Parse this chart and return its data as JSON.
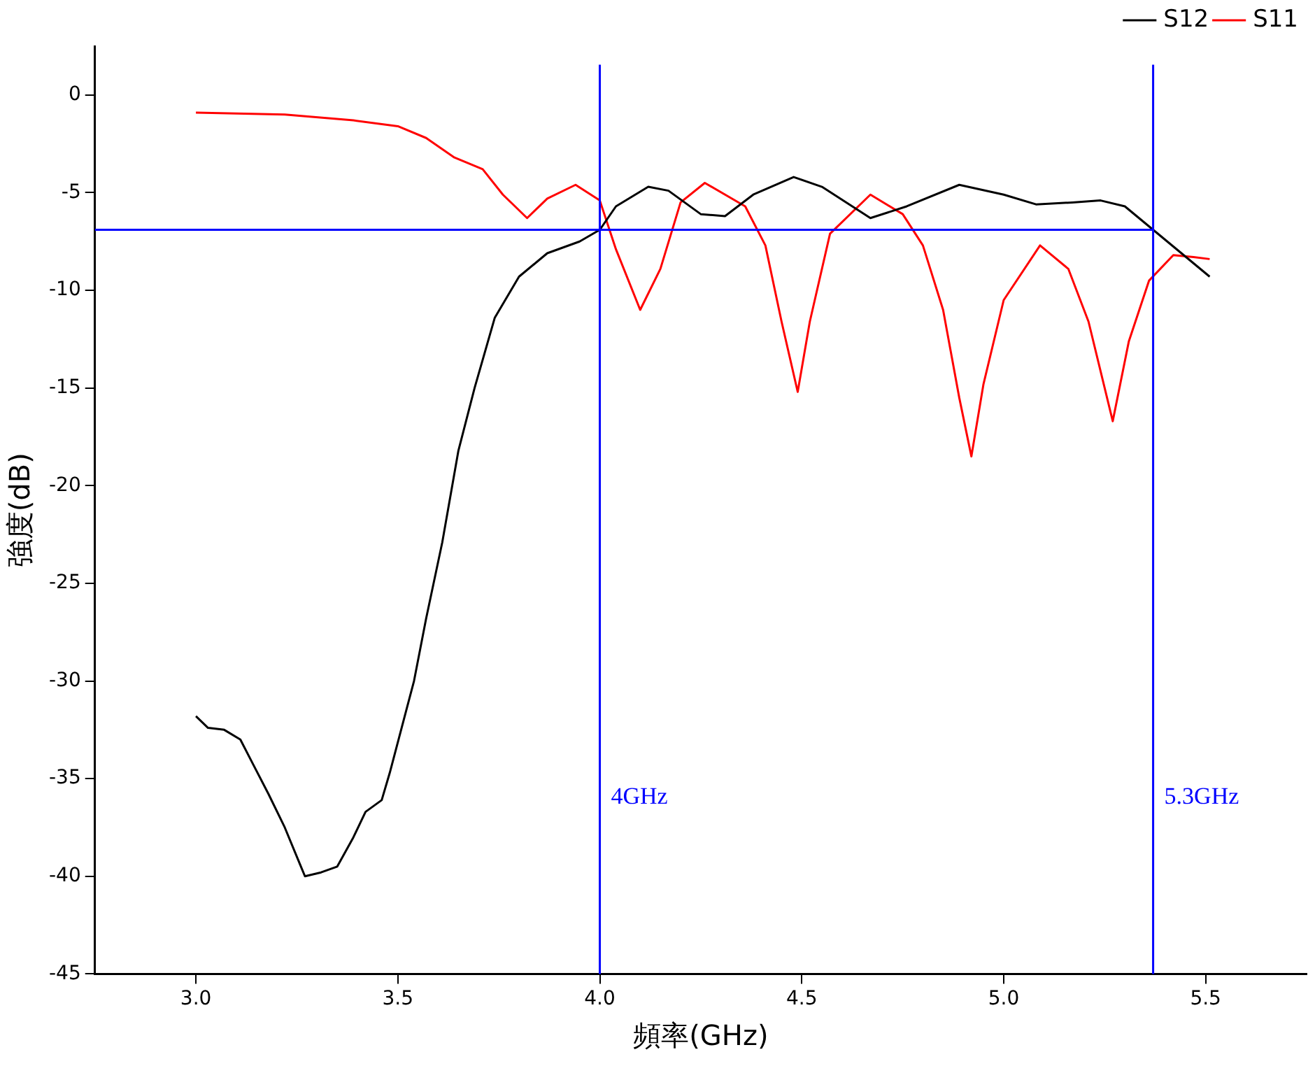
{
  "chart_data": {
    "type": "line",
    "xlabel": "頻率(GHz)",
    "ylabel": "強度(dB)",
    "xlim": [
      2.75,
      5.75
    ],
    "xticks": [
      {
        "value": 3,
        "label": "3.0"
      },
      3.5,
      {
        "value": 4,
        "label": "4.0"
      },
      4.5,
      {
        "value": 5,
        "label": "5.0"
      },
      5.5
    ],
    "ylim": [
      -45,
      2.5
    ],
    "yticks": [
      0,
      -5,
      -10,
      -15,
      -20,
      -25,
      -30,
      -35,
      -40,
      -45
    ],
    "grid": false,
    "legend": "top right",
    "marker": "none",
    "line_style": "solid",
    "series": [
      {
        "name": "S12",
        "color": "#000000",
        "x": [
          3.0,
          3.03,
          3.07,
          3.11,
          3.14,
          3.18,
          3.22,
          3.26,
          3.27,
          3.31,
          3.35,
          3.39,
          3.42,
          3.46,
          3.48,
          3.54,
          3.57,
          3.61,
          3.65,
          3.69,
          3.74,
          3.8,
          3.87,
          3.95,
          4.0,
          4.04,
          4.12,
          4.17,
          4.25,
          4.31,
          4.38,
          4.48,
          4.55,
          4.67,
          4.76,
          4.89,
          5.0,
          5.08,
          5.17,
          5.24,
          5.3,
          5.37,
          5.51
        ],
        "values": [
          -31.8,
          -32.4,
          -32.5,
          -33,
          -34.2,
          -35.8,
          -37.5,
          -39.5,
          -40,
          -39.8,
          -39.5,
          -38,
          -36.7,
          -36.1,
          -34.7,
          -30,
          -26.8,
          -22.9,
          -18.2,
          -15,
          -11.4,
          -9.3,
          -8.1,
          -7.5,
          -6.9,
          -5.7,
          -4.7,
          -4.9,
          -6.1,
          -6.2,
          -5.1,
          -4.2,
          -4.7,
          -6.3,
          -5.7,
          -4.6,
          -5.1,
          -5.6,
          -5.5,
          -5.4,
          -5.7,
          -6.9,
          -9.3
        ]
      },
      {
        "name": "S11",
        "color": "#ff0000",
        "x": [
          3.0,
          3.22,
          3.39,
          3.5,
          3.57,
          3.64,
          3.71,
          3.76,
          3.82,
          3.87,
          3.94,
          4.0,
          4.04,
          4.1,
          4.15,
          4.2,
          4.26,
          4.36,
          4.41,
          4.45,
          4.49,
          4.52,
          4.57,
          4.67,
          4.75,
          4.8,
          4.85,
          4.89,
          4.92,
          4.95,
          5.0,
          5.09,
          5.16,
          5.21,
          5.27,
          5.31,
          5.36,
          5.42,
          5.47,
          5.51
        ],
        "values": [
          -0.9,
          -1.0,
          -1.3,
          -1.6,
          -2.2,
          -3.2,
          -3.8,
          -5.1,
          -6.3,
          -5.3,
          -4.6,
          -5.4,
          -7.9,
          -11.0,
          -8.9,
          -5.5,
          -4.5,
          -5.7,
          -7.7,
          -11.6,
          -15.2,
          -11.6,
          -7.1,
          -5.1,
          -6.1,
          -7.7,
          -11.0,
          -15.5,
          -18.5,
          -14.8,
          -10.5,
          -7.7,
          -8.9,
          -11.6,
          -16.7,
          -12.6,
          -9.5,
          -8.2,
          -8.3,
          -8.4
        ]
      }
    ],
    "ref_lines": [
      {
        "axis": "y",
        "value": -6.9,
        "color": "#0000ff"
      },
      {
        "axis": "x",
        "value": 4.0,
        "label": "4GHz",
        "color": "#0000ff"
      },
      {
        "axis": "x",
        "value": 5.37,
        "label": "5.3GHz",
        "color": "#0000ff"
      }
    ]
  }
}
